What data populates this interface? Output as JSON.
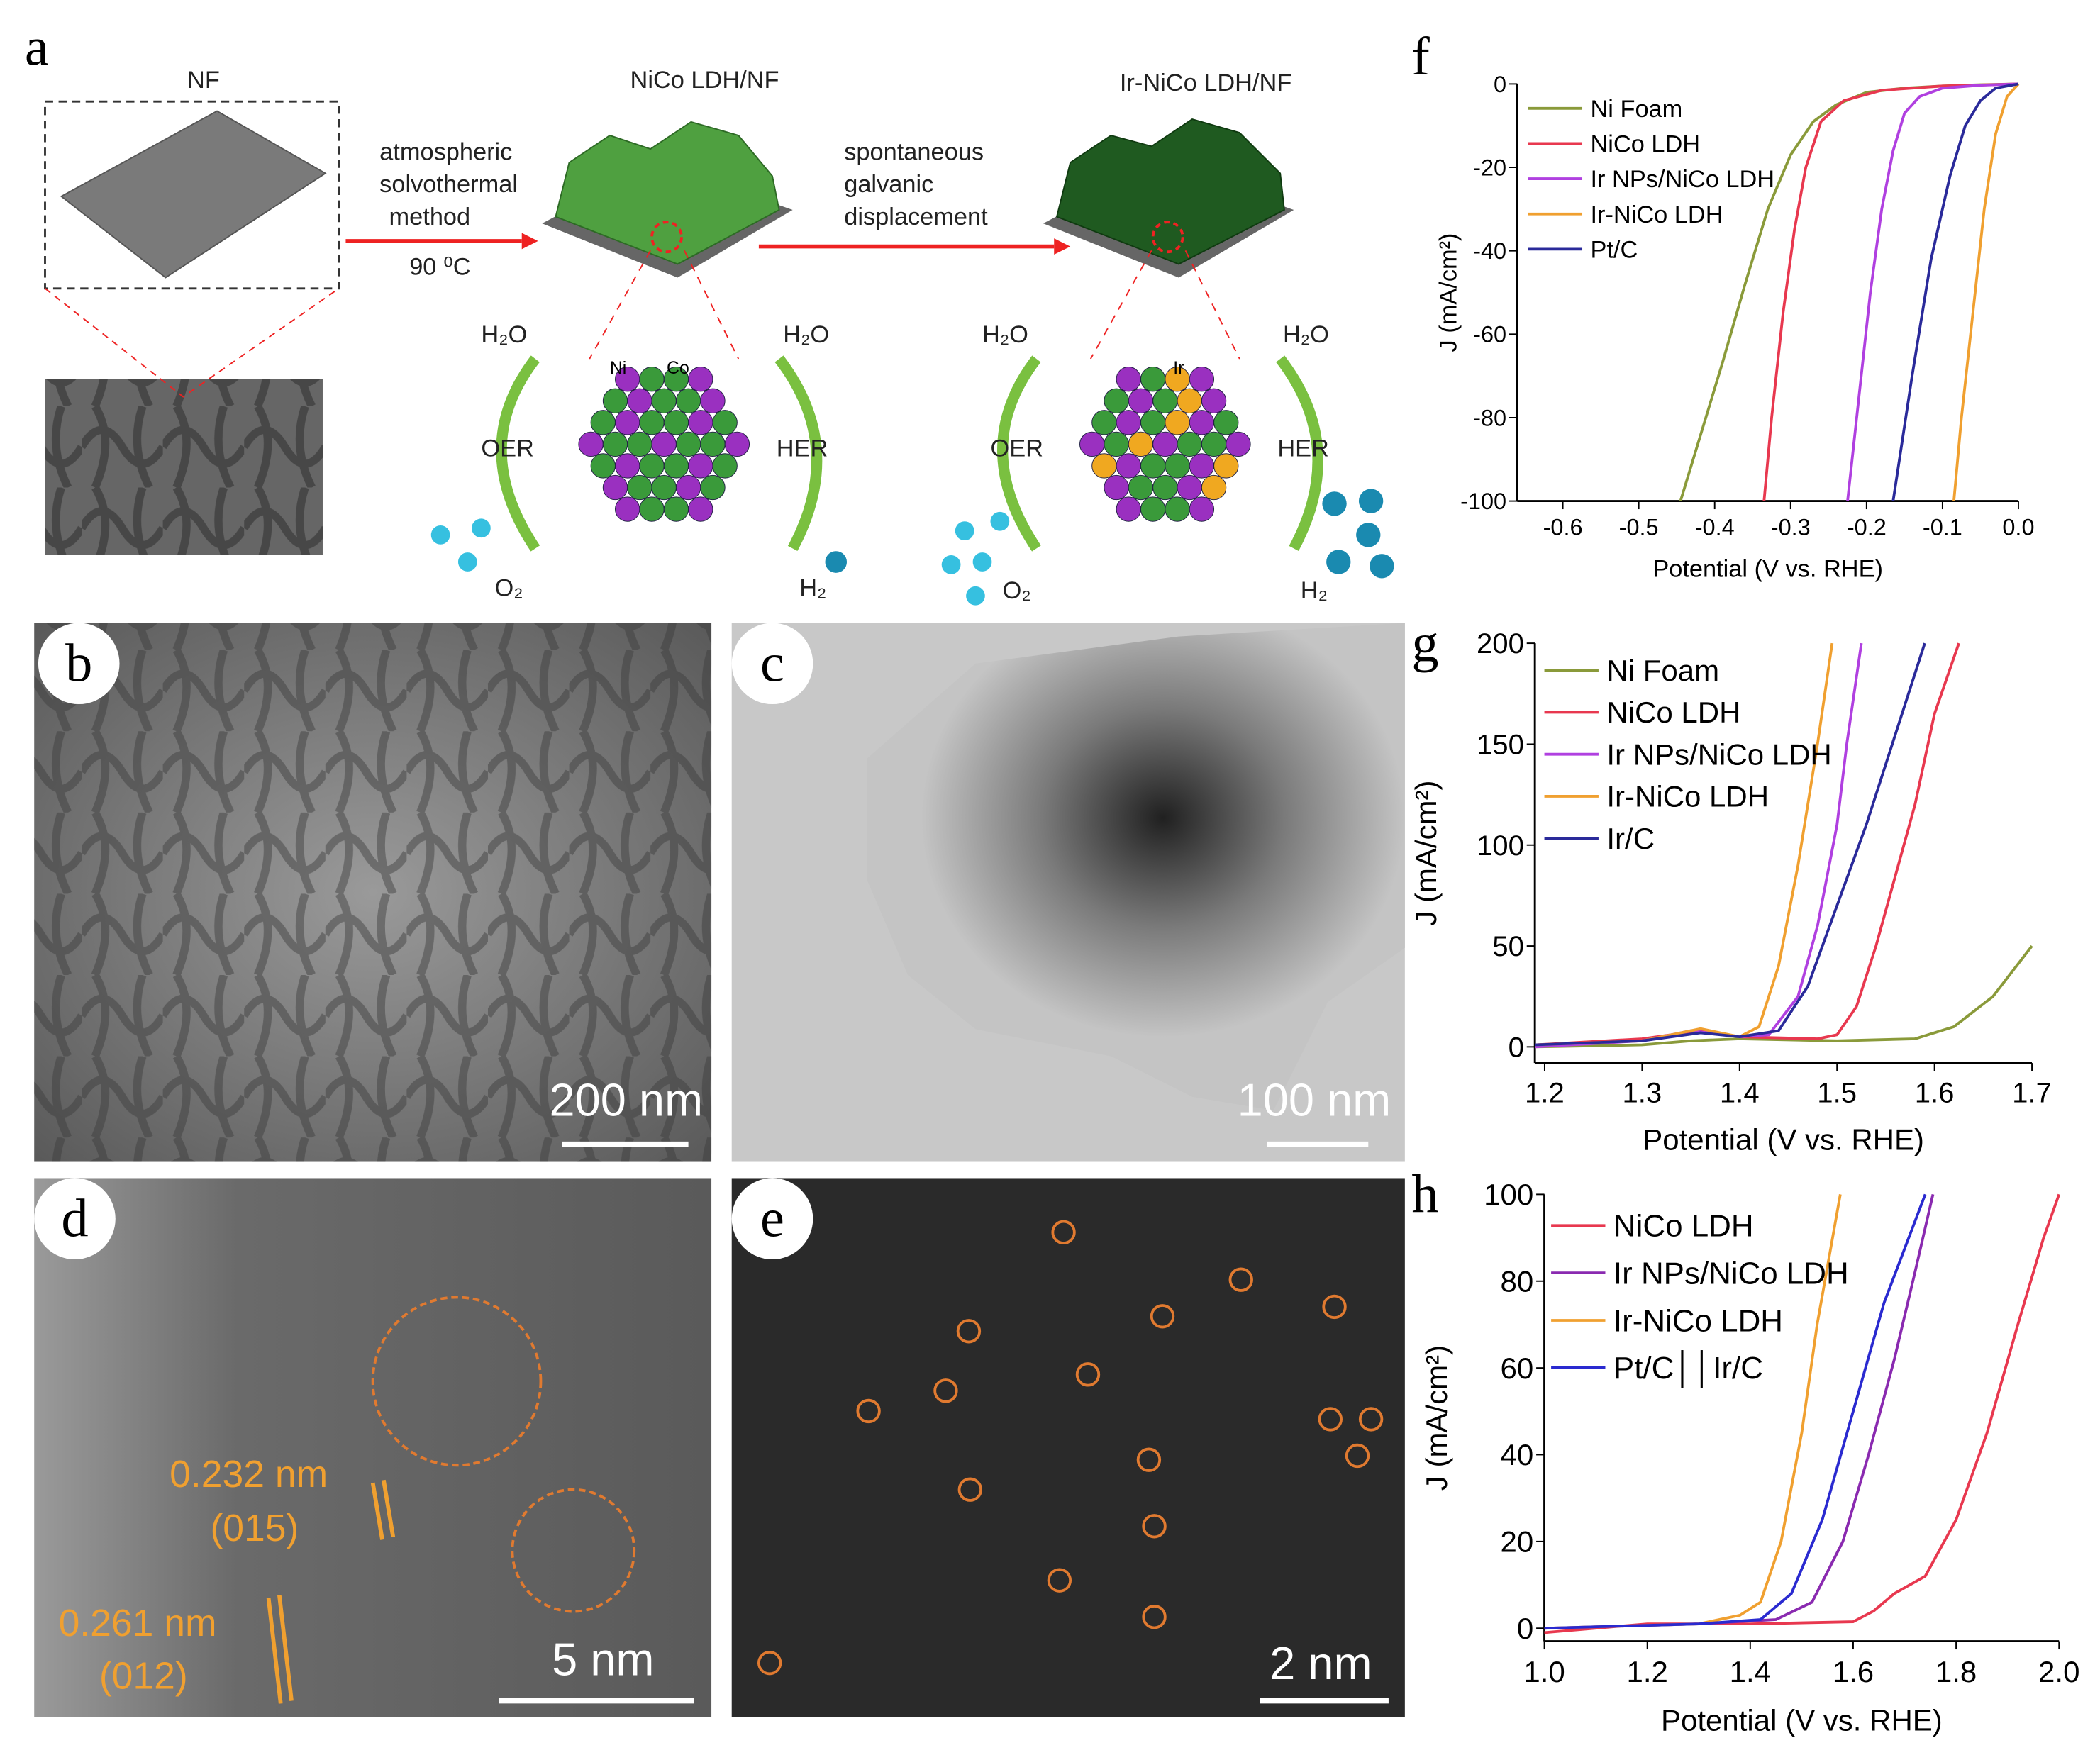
{
  "panel_labels": [
    "a",
    "b",
    "c",
    "d",
    "e",
    "f",
    "g",
    "h"
  ],
  "diagram": {
    "substrate": "NF",
    "intermediate": "NiCo LDH/NF",
    "product": "Ir-NiCo LDH/NF",
    "step1": [
      "atmospheric",
      "solvothermal",
      "method"
    ],
    "step1_temperature": "90 ⁰C",
    "step2": [
      "spontaneous",
      "galvanic",
      "displacement"
    ],
    "left_cycle": {
      "reactant_oer": "H₂O",
      "reactant_her": "H₂O",
      "oer": "OER",
      "her": "HER",
      "product_oer": "O₂",
      "product_her": "H₂",
      "atoms": [
        "Ni",
        "Co"
      ]
    },
    "right_cycle": {
      "reactant_oer": "H₂O",
      "reactant_her": "H₂O",
      "oer": "OER",
      "her": "HER",
      "product_oer": "O₂",
      "product_her": "H₂",
      "atoms": [
        "Ir"
      ]
    }
  },
  "micrographs": [
    {
      "scale": "200 nm"
    },
    {
      "scale": "100 nm"
    },
    {
      "scale": "5 nm",
      "annotations": [
        "0.232 nm",
        "(015)",
        "0.261 nm",
        "(012)"
      ]
    },
    {
      "scale": "2 nm"
    }
  ],
  "chart_data": [
    {
      "type": "line",
      "xlabel": "Potential (V vs. RHE)",
      "ylabel": "J (mA/cm²)",
      "legend": "upper left",
      "xlim": [
        -0.66,
        0.0
      ],
      "ylim": [
        -100,
        0
      ],
      "xticks": [
        -0.6,
        -0.5,
        -0.4,
        -0.3,
        -0.2,
        -0.1,
        {
          "value": 0,
          "label": "0.0"
        }
      ],
      "yticks": [
        0,
        -20,
        -40,
        -60,
        -80,
        -100
      ],
      "series": [
        {
          "name": "Ni Foam",
          "color": "#8a9a3a",
          "x": [
            -0.445,
            -0.42,
            -0.39,
            -0.36,
            -0.33,
            -0.3,
            -0.27,
            -0.24,
            -0.2,
            -0.15,
            -0.1,
            -0.05,
            0
          ],
          "values": [
            -100,
            -85,
            -67,
            -48,
            -30,
            -17,
            -9,
            -5,
            -2,
            -1,
            -0.5,
            -0.2,
            0
          ]
        },
        {
          "name": "NiCo LDH",
          "color": "#e8384f",
          "x": [
            -0.335,
            -0.325,
            -0.31,
            -0.295,
            -0.28,
            -0.26,
            -0.23,
            -0.18,
            -0.1,
            0
          ],
          "values": [
            -100,
            -80,
            -55,
            -35,
            -20,
            -9,
            -4,
            -1.5,
            -0.5,
            0
          ]
        },
        {
          "name": "Ir NPs/NiCo LDH",
          "color": "#b040e0",
          "x": [
            -0.225,
            -0.21,
            -0.195,
            -0.18,
            -0.165,
            -0.15,
            -0.13,
            -0.1,
            -0.05,
            0
          ],
          "values": [
            -100,
            -75,
            -50,
            -30,
            -16,
            -7,
            -3,
            -1,
            -0.3,
            0
          ]
        },
        {
          "name": "Ir-NiCo LDH",
          "color": "#f0a030",
          "x": [
            -0.085,
            -0.075,
            -0.06,
            -0.045,
            -0.03,
            -0.015,
            0
          ],
          "values": [
            -100,
            -80,
            -55,
            -30,
            -12,
            -3,
            0
          ]
        },
        {
          "name": "Pt/C",
          "color": "#2a2a9a",
          "x": [
            -0.165,
            -0.14,
            -0.115,
            -0.09,
            -0.07,
            -0.05,
            -0.03,
            0
          ],
          "values": [
            -100,
            -70,
            -42,
            -22,
            -10,
            -4,
            -1,
            0
          ]
        }
      ]
    },
    {
      "type": "line",
      "xlabel": "Potential (V vs. RHE)",
      "ylabel": "J (mA/cm²)",
      "legend": "upper left",
      "xlim": [
        1.19,
        1.7
      ],
      "ylim": [
        -8,
        200
      ],
      "xticks": [
        1.2,
        1.3,
        1.4,
        1.5,
        1.6,
        1.7
      ],
      "yticks": [
        0,
        50,
        100,
        150,
        200
      ],
      "series": [
        {
          "name": "Ni Foam",
          "color": "#8a9a3a",
          "x": [
            1.19,
            1.3,
            1.35,
            1.4,
            1.5,
            1.58,
            1.62,
            1.66,
            1.7
          ],
          "values": [
            0,
            1,
            3,
            4,
            3,
            4,
            10,
            25,
            50
          ]
        },
        {
          "name": "NiCo LDH",
          "color": "#e8384f",
          "x": [
            1.19,
            1.3,
            1.36,
            1.4,
            1.48,
            1.5,
            1.52,
            1.54,
            1.56,
            1.58,
            1.6,
            1.625
          ],
          "values": [
            1,
            4,
            8,
            5,
            4,
            6,
            20,
            50,
            85,
            120,
            165,
            200
          ]
        },
        {
          "name": "Ir NPs/NiCo LDH",
          "color": "#b040e0",
          "x": [
            1.19,
            1.3,
            1.35,
            1.4,
            1.43,
            1.46,
            1.48,
            1.5,
            1.51,
            1.525
          ],
          "values": [
            0,
            3,
            8,
            5,
            6,
            25,
            60,
            110,
            150,
            200
          ]
        },
        {
          "name": "Ir-NiCo LDH",
          "color": "#f0a030",
          "x": [
            1.19,
            1.3,
            1.36,
            1.4,
            1.42,
            1.44,
            1.46,
            1.48,
            1.495
          ],
          "values": [
            1,
            3,
            9,
            5,
            10,
            40,
            90,
            150,
            200
          ]
        },
        {
          "name": "Ir/C",
          "color": "#2a2a9a",
          "x": [
            1.19,
            1.3,
            1.36,
            1.4,
            1.44,
            1.47,
            1.5,
            1.53,
            1.56,
            1.59
          ],
          "values": [
            1,
            3,
            7,
            5,
            8,
            30,
            70,
            110,
            155,
            200
          ]
        }
      ]
    },
    {
      "type": "line",
      "xlabel": "Potential (V vs. RHE)",
      "ylabel": "J (mA/cm²)",
      "legend": "upper left",
      "xlim": [
        1.0,
        2.0
      ],
      "ylim": [
        -3,
        100
      ],
      "xticks": [
        {
          "value": 1,
          "label": "1.0"
        },
        1.2,
        1.4,
        1.6,
        1.8,
        {
          "value": 2,
          "label": "2.0"
        }
      ],
      "yticks": [
        0,
        20,
        40,
        60,
        80,
        100
      ],
      "series": [
        {
          "name": "NiCo LDH",
          "color": "#e8384f",
          "x": [
            1.0,
            1.2,
            1.4,
            1.6,
            1.64,
            1.68,
            1.74,
            1.8,
            1.86,
            1.92,
            1.97,
            2.0
          ],
          "values": [
            -1,
            1,
            1,
            1.5,
            4,
            8,
            12,
            25,
            45,
            70,
            90,
            100
          ]
        },
        {
          "name": "Ir NPs/NiCo LDH",
          "color": "#8a2ab0",
          "x": [
            1.0,
            1.3,
            1.45,
            1.52,
            1.58,
            1.63,
            1.68,
            1.72,
            1.755
          ],
          "values": [
            0,
            1,
            2,
            6,
            20,
            40,
            62,
            82,
            100
          ]
        },
        {
          "name": "Ir-NiCo LDH",
          "color": "#f0a030",
          "x": [
            1.0,
            1.3,
            1.38,
            1.42,
            1.46,
            1.5,
            1.53,
            1.56,
            1.575
          ],
          "values": [
            0,
            1,
            3,
            6,
            20,
            45,
            70,
            90,
            100
          ]
        },
        {
          "name": "Pt/C││Ir/C",
          "color": "#2a2ad0",
          "x": [
            1.0,
            1.3,
            1.42,
            1.48,
            1.54,
            1.6,
            1.66,
            1.74
          ],
          "values": [
            0,
            1,
            2,
            8,
            25,
            50,
            75,
            100
          ]
        }
      ]
    }
  ]
}
